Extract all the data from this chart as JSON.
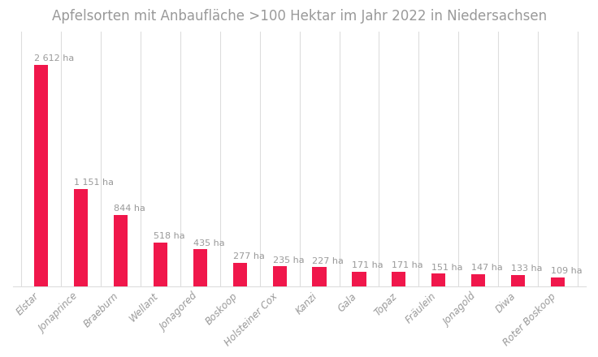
{
  "title": "Apfelsorten mit Anbaufläche >100 Hektar im Jahr 2022 in Niedersachsen",
  "categories": [
    "Elstar",
    "Jonaprince",
    "Braeburn",
    "Wellant",
    "Jonagored",
    "Boskoop",
    "Holsteiner Cox",
    "Kanzi",
    "Gala",
    "Topaz",
    "Fräulein",
    "Jonagold",
    "Diwa",
    "Roter Boskoop"
  ],
  "values": [
    2612,
    1151,
    844,
    518,
    435,
    277,
    235,
    227,
    171,
    171,
    151,
    147,
    133,
    109
  ],
  "labels": [
    "2 612 ha",
    "1 151 ha",
    "844 ha",
    "518 ha",
    "435 ha",
    "277 ha",
    "235 ha",
    "227 ha",
    "171 ha",
    "171 ha",
    "151 ha",
    "147 ha",
    "133 ha",
    "109 ha"
  ],
  "bar_color": "#F0174B",
  "background_color": "#FFFFFF",
  "title_fontsize": 12,
  "label_fontsize": 8,
  "tick_fontsize": 8.5,
  "label_color": "#999999",
  "grid_color": "#DDDDDD",
  "ylim": [
    0,
    3000
  ]
}
